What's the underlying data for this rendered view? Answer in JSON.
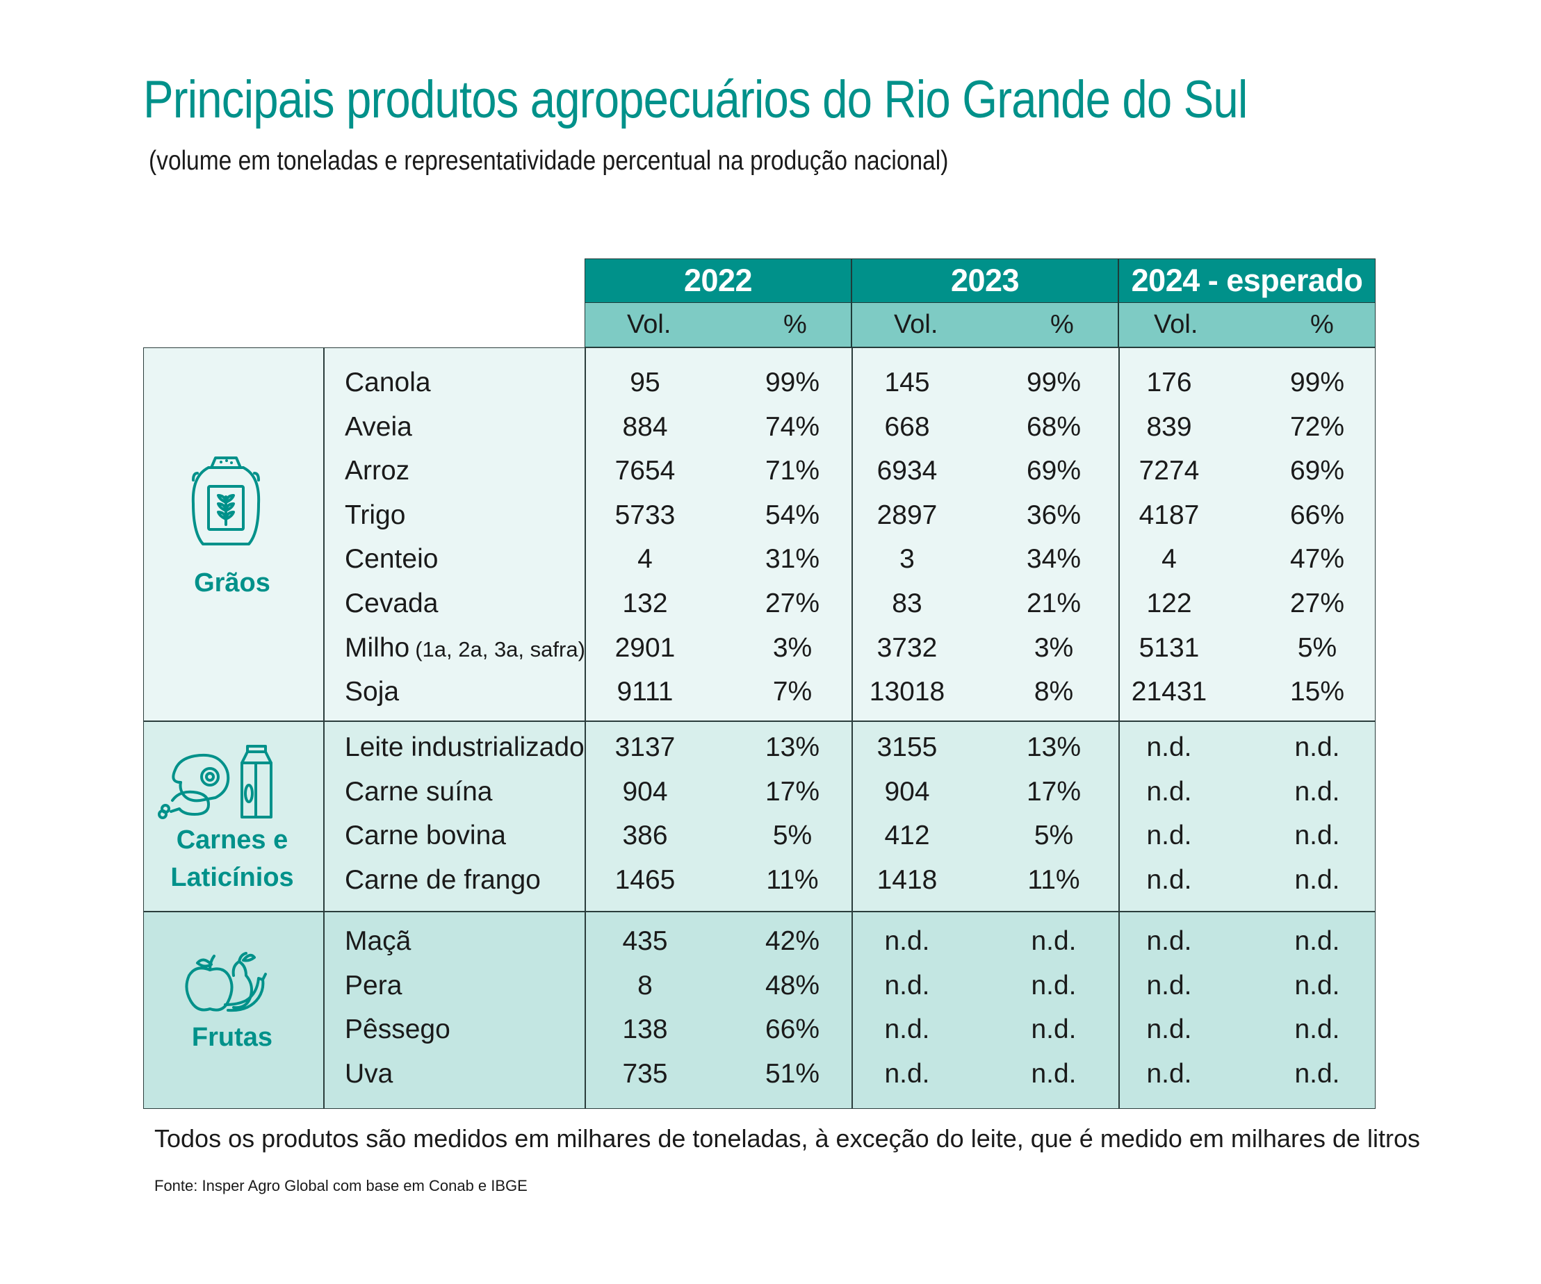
{
  "title": "Principais produtos agropecuários do Rio Grande do Sul",
  "subtitle": "(volume em toneladas e representatividade percentual na produção nacional)",
  "colors": {
    "accent": "#00918a",
    "subheader": "#7ecbc4",
    "band_graos": "#eaf6f5",
    "band_carnes": "#d8efec",
    "band_frutas": "#c3e6e2"
  },
  "headers": {
    "years": [
      "2022",
      "2023",
      "2024 - esperado"
    ],
    "vol": "Vol.",
    "pct": "%"
  },
  "categories": [
    {
      "name": "Grãos",
      "icon": "grain-sack-icon",
      "rows": [
        {
          "product": "Canola",
          "v2022": "95",
          "p2022": "99%",
          "v2023": "145",
          "p2023": "99%",
          "v2024": "176",
          "p2024": "99%"
        },
        {
          "product": "Aveia",
          "v2022": "884",
          "p2022": "74%",
          "v2023": "668",
          "p2023": "68%",
          "v2024": "839",
          "p2024": "72%"
        },
        {
          "product": "Arroz",
          "v2022": "7654",
          "p2022": "71%",
          "v2023": "6934",
          "p2023": "69%",
          "v2024": "7274",
          "p2024": "69%"
        },
        {
          "product": "Trigo",
          "v2022": "5733",
          "p2022": "54%",
          "v2023": "2897",
          "p2023": "36%",
          "v2024": "4187",
          "p2024": "66%"
        },
        {
          "product": "Centeio",
          "v2022": "4",
          "p2022": "31%",
          "v2023": "3",
          "p2023": "34%",
          "v2024": "4",
          "p2024": "47%"
        },
        {
          "product": "Cevada",
          "v2022": "132",
          "p2022": "27%",
          "v2023": "83",
          "p2023": "21%",
          "v2024": "122",
          "p2024": "27%"
        },
        {
          "product": "Milho",
          "product_note": "(1a, 2a, 3a, safra)",
          "v2022": "2901",
          "p2022": "3%",
          "v2023": "3732",
          "p2023": "3%",
          "v2024": "5131",
          "p2024": "5%"
        },
        {
          "product": "Soja",
          "v2022": "9111",
          "p2022": "7%",
          "v2023": "13018",
          "p2023": "8%",
          "v2024": "21431",
          "p2024": "15%"
        }
      ]
    },
    {
      "name": "Carnes e",
      "name2": "Laticínios",
      "icon": "meat-and-milk-icon",
      "rows": [
        {
          "product": "Leite industrializado",
          "v2022": "3137",
          "p2022": "13%",
          "v2023": "3155",
          "p2023": "13%",
          "v2024": "n.d.",
          "p2024": "n.d."
        },
        {
          "product": "Carne suína",
          "v2022": "904",
          "p2022": "17%",
          "v2023": "904",
          "p2023": "17%",
          "v2024": "n.d.",
          "p2024": "n.d."
        },
        {
          "product": "Carne bovina",
          "v2022": "386",
          "p2022": "5%",
          "v2023": "412",
          "p2023": "5%",
          "v2024": "n.d.",
          "p2024": "n.d."
        },
        {
          "product": "Carne de frango",
          "v2022": "1465",
          "p2022": "11%",
          "v2023": "1418",
          "p2023": "11%",
          "v2024": "n.d.",
          "p2024": "n.d."
        }
      ]
    },
    {
      "name": "Frutas",
      "icon": "fruits-icon",
      "rows": [
        {
          "product": "Maçã",
          "v2022": "435",
          "p2022": "42%",
          "v2023": "n.d.",
          "p2023": "n.d.",
          "v2024": "n.d.",
          "p2024": "n.d."
        },
        {
          "product": "Pera",
          "v2022": "8",
          "p2022": "48%",
          "v2023": "n.d.",
          "p2023": "n.d.",
          "v2024": "n.d.",
          "p2024": "n.d."
        },
        {
          "product": "Pêssego",
          "v2022": "138",
          "p2022": "66%",
          "v2023": "n.d.",
          "p2023": "n.d.",
          "v2024": "n.d.",
          "p2024": "n.d."
        },
        {
          "product": "Uva",
          "v2022": "735",
          "p2022": "51%",
          "v2023": "n.d.",
          "p2023": "n.d.",
          "v2024": "n.d.",
          "p2024": "n.d."
        }
      ]
    }
  ],
  "footnote": "Todos os produtos são medidos em milhares de toneladas, à exceção do leite, que é medido em milhares de litros",
  "source": "Fonte: Insper Agro Global com base em Conab e IBGE",
  "chart_data": {
    "type": "table",
    "title": "Principais produtos agropecuários do Rio Grande do Sul",
    "subtitle": "(volume em toneladas e representatividade percentual na produção nacional)",
    "columns": [
      "2022 Vol.",
      "2022 %",
      "2023 Vol.",
      "2023 %",
      "2024 - esperado Vol.",
      "2024 - esperado %"
    ],
    "row_groups": [
      "Grãos",
      "Carnes e Laticínios",
      "Frutas"
    ]
  }
}
